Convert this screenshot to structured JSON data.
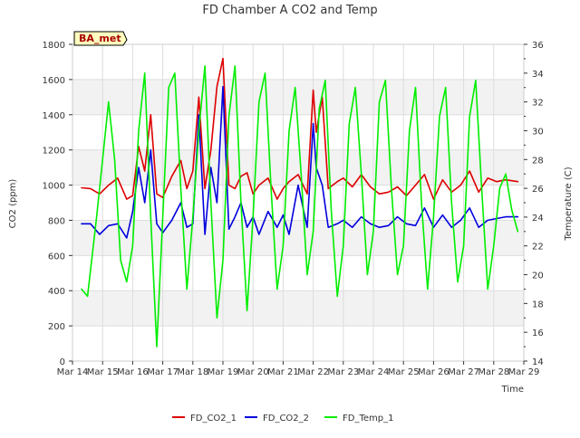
{
  "chart_data": {
    "type": "line",
    "title": "FD Chamber A CO2 and Temp",
    "xlabel": "Time",
    "ylabel": "CO2 (ppm)",
    "y2label": "Temperature (C)",
    "annotation": "BA_met",
    "x_ticks": [
      "Mar 14",
      "Mar 15",
      "Mar 16",
      "Mar 17",
      "Mar 18",
      "Mar 19",
      "Mar 20",
      "Mar 21",
      "Mar 22",
      "Mar 23",
      "Mar 24",
      "Mar 25",
      "Mar 26",
      "Mar 27",
      "Mar 28",
      "Mar 29"
    ],
    "xlim": [
      0,
      15
    ],
    "ylim": [
      0,
      1800
    ],
    "y_ticks": [
      0,
      200,
      400,
      600,
      800,
      1000,
      1200,
      1400,
      1600,
      1800
    ],
    "y2lim": [
      14,
      36
    ],
    "y2_ticks": [
      14,
      16,
      18,
      20,
      22,
      24,
      26,
      28,
      30,
      32,
      34,
      36
    ],
    "grid": true,
    "legend_position": "bottom",
    "series": [
      {
        "name": "FD_CO2_1",
        "color": "#dd0000",
        "axis": "left",
        "x": [
          0.3,
          0.6,
          0.9,
          1.2,
          1.5,
          1.8,
          2.0,
          2.2,
          2.4,
          2.6,
          2.8,
          3.0,
          3.3,
          3.6,
          3.8,
          4.0,
          4.2,
          4.4,
          4.6,
          4.8,
          5.0,
          5.2,
          5.4,
          5.6,
          5.8,
          6.0,
          6.2,
          6.5,
          6.8,
          7.0,
          7.2,
          7.5,
          7.8,
          8.0,
          8.1,
          8.3,
          8.5,
          8.8,
          9.0,
          9.3,
          9.6,
          9.9,
          10.2,
          10.5,
          10.8,
          11.1,
          11.4,
          11.7,
          12.0,
          12.3,
          12.6,
          12.9,
          13.2,
          13.5,
          13.8,
          14.1,
          14.4,
          14.8
        ],
        "y": [
          985,
          980,
          950,
          1000,
          1040,
          920,
          940,
          1220,
          1080,
          1400,
          950,
          930,
          1050,
          1140,
          980,
          1080,
          1500,
          980,
          1200,
          1560,
          1720,
          1000,
          980,
          1050,
          1070,
          950,
          1000,
          1040,
          920,
          980,
          1020,
          1060,
          950,
          1540,
          1300,
          1500,
          980,
          1020,
          1040,
          990,
          1060,
          990,
          950,
          960,
          990,
          940,
          1000,
          1060,
          920,
          1030,
          960,
          1000,
          1080,
          960,
          1040,
          1020,
          1030,
          1020
        ]
      },
      {
        "name": "FD_CO2_2",
        "color": "#0000dd",
        "axis": "left",
        "x": [
          0.3,
          0.6,
          0.9,
          1.2,
          1.5,
          1.8,
          2.0,
          2.2,
          2.4,
          2.6,
          2.8,
          3.0,
          3.3,
          3.6,
          3.8,
          4.0,
          4.2,
          4.4,
          4.6,
          4.8,
          5.0,
          5.2,
          5.4,
          5.6,
          5.8,
          6.0,
          6.2,
          6.5,
          6.8,
          7.0,
          7.2,
          7.5,
          7.8,
          8.0,
          8.1,
          8.3,
          8.5,
          8.8,
          9.0,
          9.3,
          9.6,
          9.9,
          10.2,
          10.5,
          10.8,
          11.1,
          11.4,
          11.7,
          12.0,
          12.3,
          12.6,
          12.9,
          13.2,
          13.5,
          13.8,
          14.1,
          14.4,
          14.8
        ],
        "y": [
          780,
          780,
          720,
          770,
          780,
          700,
          850,
          1100,
          900,
          1200,
          780,
          730,
          800,
          900,
          760,
          780,
          1400,
          720,
          1100,
          900,
          1560,
          750,
          820,
          900,
          760,
          820,
          720,
          850,
          760,
          830,
          720,
          1000,
          760,
          1350,
          1100,
          1000,
          760,
          780,
          800,
          760,
          820,
          780,
          760,
          770,
          820,
          780,
          770,
          870,
          760,
          830,
          760,
          800,
          870,
          760,
          800,
          810,
          820,
          820
        ]
      },
      {
        "name": "FD_Temp_1",
        "color": "#00ee00",
        "axis": "right",
        "x": [
          0.3,
          0.5,
          0.8,
          1.0,
          1.2,
          1.4,
          1.6,
          1.8,
          2.0,
          2.2,
          2.4,
          2.6,
          2.8,
          3.0,
          3.2,
          3.4,
          3.6,
          3.8,
          4.0,
          4.2,
          4.4,
          4.6,
          4.8,
          5.0,
          5.2,
          5.4,
          5.6,
          5.8,
          6.0,
          6.2,
          6.4,
          6.6,
          6.8,
          7.0,
          7.2,
          7.4,
          7.6,
          7.8,
          8.0,
          8.2,
          8.4,
          8.6,
          8.8,
          9.0,
          9.2,
          9.4,
          9.6,
          9.8,
          10.0,
          10.2,
          10.4,
          10.6,
          10.8,
          11.0,
          11.2,
          11.4,
          11.6,
          11.8,
          12.0,
          12.2,
          12.4,
          12.6,
          12.8,
          13.0,
          13.2,
          13.4,
          13.6,
          13.8,
          14.0,
          14.2,
          14.4,
          14.6,
          14.8
        ],
        "y": [
          19.0,
          18.5,
          24.0,
          28.0,
          32.0,
          28.0,
          21.0,
          19.5,
          22.0,
          30.0,
          34.0,
          24.0,
          15.0,
          24.0,
          33.0,
          34.0,
          26.0,
          19.0,
          24.0,
          30.0,
          34.5,
          25.0,
          17.0,
          21.0,
          31.0,
          34.5,
          25.0,
          17.5,
          24.0,
          32.0,
          34.0,
          26.0,
          19.0,
          22.0,
          30.0,
          33.0,
          27.0,
          20.0,
          23.0,
          31.5,
          33.5,
          24.5,
          18.5,
          22.0,
          30.5,
          33.0,
          27.0,
          20.0,
          23.0,
          32.0,
          33.5,
          26.0,
          20.0,
          22.0,
          30.0,
          33.0,
          25.0,
          19.0,
          24.0,
          31.0,
          33.0,
          25.0,
          19.5,
          22.0,
          31.0,
          33.5,
          26.0,
          19.0,
          22.0,
          26.0,
          27.0,
          24.5,
          23.0
        ]
      }
    ]
  }
}
